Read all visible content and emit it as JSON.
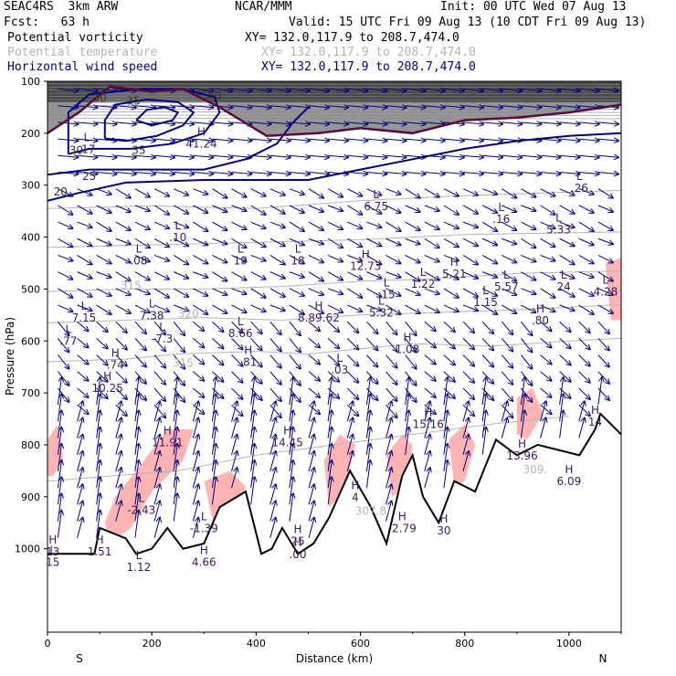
{
  "header": {
    "model": "SEAC4RS  3km ARW",
    "org": "NCAR/MMM",
    "init": "Init: 00 UTC Wed 07 Aug 13",
    "fcst": "Fcst:   63 h",
    "valid": "Valid: 15 UTC Fri 09 Aug 13 (10 CDT Fri 09 Aug 13)"
  },
  "legend": [
    {
      "name": "Potential vorticity",
      "xy": "XY= 132.0,117.9 to 208.7,474.0",
      "color": "#000000"
    },
    {
      "name": "Potential temperature",
      "xy": "XY= 132.0,117.9 to 208.7,474.0",
      "color": "#b4b4b4"
    },
    {
      "name": "Horizontal wind speed",
      "xy": "XY= 132.0,117.9 to 208.7,474.0",
      "color": "#000080"
    }
  ],
  "chart_data": {
    "type": "cross-section",
    "xlabel": "Distance (km)",
    "ylabel": "Pressure (hPa)",
    "xlim": [
      0,
      1100
    ],
    "ylim": [
      1050,
      100
    ],
    "xticks": [
      "0",
      "200",
      "400",
      "600",
      "800",
      "1000"
    ],
    "yticks": [
      "100",
      "200",
      "300",
      "400",
      "500",
      "600",
      "700",
      "800",
      "900",
      "1000"
    ],
    "x_end_labels": {
      "left": "S",
      "right": "N"
    },
    "colors": {
      "wind_contour": "#000080",
      "theta": "#b4b4b4",
      "pv_shade": "#ffb4b4",
      "pv_dark": "#404040",
      "pv_line": "#5a0a3c",
      "terrain": "#000000"
    },
    "wind_contours": [
      {
        "value": 20,
        "points": [
          [
            0,
            330
          ],
          [
            60,
            315
          ],
          [
            150,
            295
          ],
          [
            300,
            290
          ],
          [
            500,
            290
          ],
          [
            600,
            270
          ],
          [
            700,
            250
          ],
          [
            800,
            230
          ],
          [
            900,
            215
          ],
          [
            1000,
            205
          ],
          [
            1100,
            200
          ]
        ]
      },
      {
        "value": 25,
        "points": [
          [
            0,
            280
          ],
          [
            80,
            270
          ],
          [
            200,
            270
          ],
          [
            300,
            270
          ],
          [
            380,
            250
          ],
          [
            440,
            220
          ],
          [
            470,
            180
          ],
          [
            500,
            150
          ]
        ]
      },
      {
        "value": 30,
        "points": [
          [
            40,
            240
          ],
          [
            80,
            230
          ],
          [
            160,
            230
          ],
          [
            240,
            220
          ],
          [
            300,
            200
          ],
          [
            330,
            160
          ],
          [
            320,
            130
          ],
          [
            260,
            115
          ],
          [
            180,
            115
          ],
          [
            80,
            125
          ],
          [
            40,
            160
          ],
          [
            40,
            240
          ]
        ]
      },
      {
        "value": 35,
        "points": [
          [
            110,
            210
          ],
          [
            150,
            215
          ],
          [
            210,
            205
          ],
          [
            260,
            185
          ],
          [
            280,
            160
          ],
          [
            250,
            140
          ],
          [
            190,
            135
          ],
          [
            130,
            145
          ],
          [
            110,
            175
          ],
          [
            110,
            210
          ]
        ]
      },
      {
        "value": 40,
        "points": [
          [
            170,
            175
          ],
          [
            200,
            185
          ],
          [
            240,
            175
          ],
          [
            250,
            160
          ],
          [
            225,
            150
          ],
          [
            190,
            155
          ],
          [
            170,
            175
          ]
        ]
      }
    ],
    "theta_contours": [
      {
        "value": 315,
        "points": [
          [
            0,
            640
          ],
          [
            150,
            635
          ],
          [
            250,
            625
          ],
          [
            400,
            620
          ],
          [
            500,
            625
          ],
          [
            600,
            615
          ],
          [
            700,
            605
          ],
          [
            850,
            610
          ],
          [
            1000,
            600
          ],
          [
            1100,
            595
          ]
        ]
      },
      {
        "value": 320,
        "points": [
          [
            0,
            565
          ],
          [
            150,
            560
          ],
          [
            300,
            555
          ],
          [
            450,
            560
          ],
          [
            600,
            550
          ],
          [
            750,
            545
          ],
          [
            900,
            540
          ],
          [
            1100,
            530
          ]
        ]
      },
      {
        "value": 315,
        "points": [
          [
            0,
            505
          ],
          [
            150,
            500
          ],
          [
            300,
            500
          ],
          [
            450,
            495
          ],
          [
            600,
            485
          ],
          [
            750,
            480
          ],
          [
            900,
            470
          ],
          [
            1100,
            465
          ]
        ]
      },
      {
        "value": 325,
        "points": [
          [
            0,
            420
          ],
          [
            200,
            415
          ],
          [
            400,
            410
          ],
          [
            600,
            405
          ],
          [
            800,
            395
          ],
          [
            1100,
            390
          ]
        ]
      },
      {
        "value": 330,
        "points": [
          [
            0,
            345
          ],
          [
            200,
            340
          ],
          [
            400,
            345
          ],
          [
            600,
            330
          ],
          [
            800,
            320
          ],
          [
            1100,
            310
          ]
        ]
      },
      {
        "value": 307,
        "points": [
          [
            0,
            870
          ],
          [
            120,
            860
          ],
          [
            250,
            850
          ],
          [
            400,
            820
          ],
          [
            550,
            800
          ],
          [
            700,
            780
          ],
          [
            850,
            760
          ],
          [
            1000,
            745
          ]
        ]
      }
    ],
    "theta_labels": [
      {
        "text": "315",
        "x": 160,
        "p": 500
      },
      {
        "text": "320",
        "x": 270,
        "p": 555
      },
      {
        "text": "315",
        "x": 260,
        "p": 650
      },
      {
        "text": "307.8",
        "x": 620,
        "p": 935
      },
      {
        "text": "309.",
        "x": 935,
        "p": 855
      }
    ],
    "wind_labels": [
      {
        "text": "30",
        "x": 100,
        "p": 140
      },
      {
        "text": "35",
        "x": 165,
        "p": 145
      },
      {
        "text": "30",
        "x": 55,
        "p": 240
      },
      {
        "text": "35",
        "x": 175,
        "p": 240
      },
      {
        "text": "25",
        "x": 80,
        "p": 290
      },
      {
        "text": "20",
        "x": 25,
        "p": 320
      },
      {
        "text": "40",
        "x": 320,
        "p": 135
      }
    ],
    "pv_line": [
      [
        0,
        200
      ],
      [
        60,
        160
      ],
      [
        120,
        110
      ],
      [
        200,
        120
      ],
      [
        260,
        115
      ],
      [
        330,
        150
      ],
      [
        420,
        205
      ],
      [
        520,
        200
      ],
      [
        600,
        190
      ],
      [
        700,
        200
      ],
      [
        800,
        175
      ],
      [
        900,
        170
      ],
      [
        1000,
        160
      ],
      [
        1100,
        145
      ]
    ],
    "pv_shade": [
      {
        "points": [
          [
            0,
            790
          ],
          [
            20,
            760
          ],
          [
            30,
            830
          ],
          [
            10,
            860
          ],
          [
            0,
            860
          ]
        ]
      },
      {
        "points": [
          [
            130,
            900
          ],
          [
            170,
            850
          ],
          [
            230,
            770
          ],
          [
            280,
            770
          ],
          [
            260,
            830
          ],
          [
            200,
            890
          ],
          [
            160,
            960
          ],
          [
            120,
            990
          ],
          [
            110,
            950
          ]
        ]
      },
      {
        "points": [
          [
            300,
            870
          ],
          [
            350,
            850
          ],
          [
            380,
            880
          ],
          [
            360,
            940
          ],
          [
            320,
            960
          ]
        ]
      },
      {
        "points": [
          [
            530,
            830
          ],
          [
            560,
            780
          ],
          [
            590,
            800
          ],
          [
            570,
            890
          ],
          [
            540,
            920
          ]
        ]
      },
      {
        "points": [
          [
            650,
            820
          ],
          [
            680,
            780
          ],
          [
            700,
            800
          ],
          [
            690,
            880
          ],
          [
            660,
            900
          ]
        ]
      },
      {
        "points": [
          [
            770,
            790
          ],
          [
            800,
            760
          ],
          [
            820,
            800
          ],
          [
            800,
            870
          ],
          [
            780,
            880
          ]
        ]
      },
      {
        "points": [
          [
            900,
            710
          ],
          [
            930,
            690
          ],
          [
            950,
            740
          ],
          [
            920,
            790
          ],
          [
            900,
            780
          ]
        ]
      },
      {
        "points": [
          [
            1070,
            450
          ],
          [
            1100,
            440
          ],
          [
            1100,
            560
          ],
          [
            1080,
            560
          ]
        ]
      }
    ],
    "terrain": [
      [
        0,
        1010
      ],
      [
        90,
        1010
      ],
      [
        100,
        960
      ],
      [
        150,
        980
      ],
      [
        170,
        1010
      ],
      [
        200,
        1000
      ],
      [
        230,
        960
      ],
      [
        260,
        1000
      ],
      [
        300,
        990
      ],
      [
        330,
        920
      ],
      [
        380,
        890
      ],
      [
        410,
        1010
      ],
      [
        430,
        1000
      ],
      [
        450,
        960
      ],
      [
        480,
        1010
      ],
      [
        510,
        990
      ],
      [
        540,
        940
      ],
      [
        580,
        850
      ],
      [
        620,
        920
      ],
      [
        650,
        990
      ],
      [
        680,
        860
      ],
      [
        700,
        820
      ],
      [
        720,
        900
      ],
      [
        750,
        950
      ],
      [
        780,
        870
      ],
      [
        820,
        890
      ],
      [
        860,
        790
      ],
      [
        900,
        820
      ],
      [
        940,
        800
      ],
      [
        980,
        810
      ],
      [
        1020,
        820
      ],
      [
        1050,
        770
      ],
      [
        1060,
        740
      ],
      [
        1080,
        760
      ],
      [
        1100,
        780
      ]
    ],
    "extrema": [
      {
        "t": "L",
        "v": ".17",
        "x": 75,
        "p": 215
      },
      {
        "t": "H",
        "v": "41.24",
        "x": 295,
        "p": 205
      },
      {
        "t": "L",
        "v": "6.75",
        "x": 630,
        "p": 325
      },
      {
        "t": "L",
        "v": ".16",
        "x": 870,
        "p": 350
      },
      {
        "t": "L",
        "v": ".26",
        "x": 1020,
        "p": 290
      },
      {
        "t": "L",
        "v": ".10",
        "x": 250,
        "p": 385
      },
      {
        "t": "L",
        "v": "5.33",
        "x": 980,
        "p": 370
      },
      {
        "t": "L",
        "v": ".08",
        "x": 175,
        "p": 430
      },
      {
        "t": "L",
        "v": "19",
        "x": 370,
        "p": 430
      },
      {
        "t": "L",
        "v": "18",
        "x": 480,
        "p": 430
      },
      {
        "t": "H",
        "v": "12.73",
        "x": 610,
        "p": 440
      },
      {
        "t": "H",
        "v": "5.21",
        "x": 780,
        "p": 455
      },
      {
        "t": "L",
        "v": "1.22",
        "x": 720,
        "p": 475
      },
      {
        "t": "L",
        "v": "5.57",
        "x": 880,
        "p": 480
      },
      {
        "t": "L",
        "v": "24",
        "x": 990,
        "p": 480
      },
      {
        "t": "L",
        "v": "4.28",
        "x": 1070,
        "p": 490
      },
      {
        "t": "L",
        "v": ".15",
        "x": 650,
        "p": 495
      },
      {
        "t": "L",
        "v": "1.15",
        "x": 840,
        "p": 510
      },
      {
        "t": "L",
        "v": "7.15",
        "x": 70,
        "p": 540
      },
      {
        "t": "L",
        "v": "7.38",
        "x": 200,
        "p": 535
      },
      {
        "t": "H",
        "v": "8.89.62",
        "x": 520,
        "p": 540
      },
      {
        "t": "L",
        "v": "5.32",
        "x": 640,
        "p": 530
      },
      {
        "t": "H",
        "v": ".80",
        "x": 945,
        "p": 545
      },
      {
        "t": "L",
        "v": ".77",
        "x": 40,
        "p": 585
      },
      {
        "t": "L",
        "v": "-7.3",
        "x": 220,
        "p": 580
      },
      {
        "t": "L",
        "v": "8.66",
        "x": 370,
        "p": 570
      },
      {
        "t": "H",
        "v": "1.08",
        "x": 690,
        "p": 600
      },
      {
        "t": "H",
        "v": ".74",
        "x": 130,
        "p": 630
      },
      {
        "t": "H",
        "v": ".81",
        "x": 385,
        "p": 625
      },
      {
        "t": "L",
        "v": ".03",
        "x": 560,
        "p": 640
      },
      {
        "t": "H",
        "v": "10.25",
        "x": 115,
        "p": 675
      },
      {
        "t": "H",
        "v": "15.16",
        "x": 730,
        "p": 745
      },
      {
        "t": "H",
        "v": "14",
        "x": 1050,
        "p": 740
      },
      {
        "t": "H",
        "v": "11.91",
        "x": 230,
        "p": 780
      },
      {
        "t": "H",
        "v": "14.45",
        "x": 460,
        "p": 780
      },
      {
        "t": "H",
        "v": "13.96",
        "x": 910,
        "p": 805
      },
      {
        "t": "H",
        "v": "6.09",
        "x": 1000,
        "p": 855
      },
      {
        "t": "H",
        "v": "4",
        "x": 590,
        "p": 885
      },
      {
        "t": "L",
        "v": "-2.43",
        "x": 180,
        "p": 910
      },
      {
        "t": "L",
        "v": "-1.39",
        "x": 300,
        "p": 945
      },
      {
        "t": "H",
        "v": "-2.79",
        "x": 680,
        "p": 945
      },
      {
        "t": "H",
        "v": "30",
        "x": 760,
        "p": 950
      },
      {
        "t": "H",
        "v": "25",
        "x": 480,
        "p": 970
      },
      {
        "t": "H",
        "v": "1.51",
        "x": 100,
        "p": 990
      },
      {
        "t": "H",
        "v": ".00",
        "x": 480,
        "p": 995
      },
      {
        "t": "H",
        "v": "4.66",
        "x": 300,
        "p": 1010
      },
      {
        "t": "L",
        "v": "1.12",
        "x": 175,
        "p": 1020
      },
      {
        "t": "H",
        "v": "13",
        "x": 10,
        "p": 990
      },
      {
        "t": "L",
        "v": "15",
        "x": 10,
        "p": 1010
      }
    ]
  }
}
